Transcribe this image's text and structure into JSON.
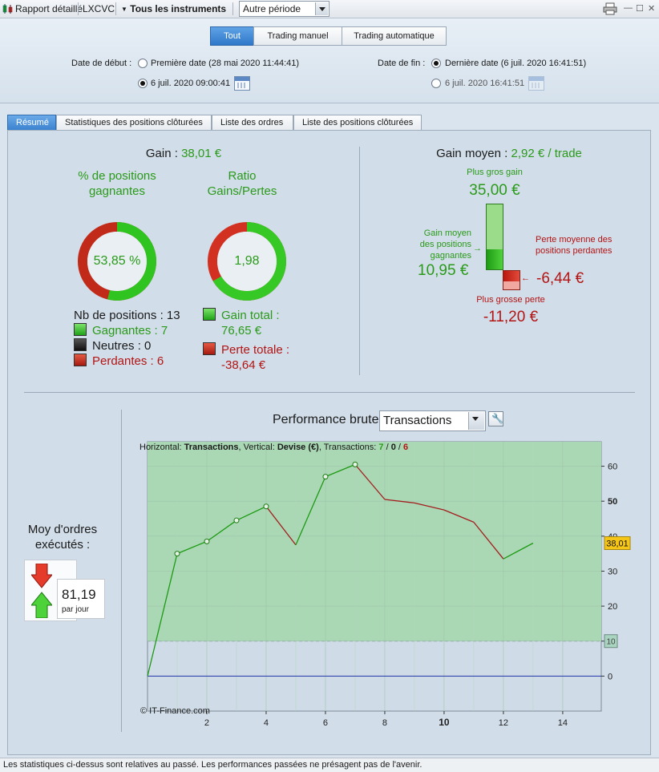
{
  "toolbar": {
    "report": "Rapport détaillé",
    "account": "LXCVC",
    "instruments": "Tous les instruments",
    "period": "Autre période"
  },
  "filters": {
    "segments": [
      "Tout",
      "Trading manuel",
      "Trading automatique"
    ],
    "start_label": "Date de début :",
    "start_first": "Première date (28 mai 2020 11:44:41)",
    "start_custom": "6 juil. 2020 09:00:41",
    "end_label": "Date de fin :",
    "end_last": "Dernière date (6 juil. 2020 16:41:51)",
    "end_custom": "6 juil. 2020 16:41:51"
  },
  "tabs": [
    "Résumé",
    "Statistiques des positions clôturées",
    "Liste des ordres",
    "Liste des positions clôturées"
  ],
  "summary": {
    "gain_label": "Gain :",
    "gain_value": "38,01 €",
    "pct_title": "% de positions gagnantes",
    "pct_value": "53,85 %",
    "pct_fraction": 0.5385,
    "ratio_title": "Ratio Gains/Pertes",
    "ratio_value": "1,98",
    "ratio_fraction": 0.665,
    "positions_label": "Nb de positions : 13",
    "winners": "Gagnantes : 7",
    "neutral": "Neutres : 0",
    "losers": "Perdantes : 6",
    "gain_total_label": "Gain total :",
    "gain_total_value": "76,65 €",
    "loss_total_label": "Perte totale :",
    "loss_total_value": "-38,64 €",
    "avg_gain_label": "Gain moyen :",
    "avg_gain_value": "2,92 € / trade",
    "biggest_gain_label": "Plus gros gain",
    "biggest_gain_value": "35,00 €",
    "avg_win_label": "Gain moyen des positions gagnantes",
    "avg_win_value": "10,95 €",
    "avg_loss_label": "Perte moyenne des positions perdantes",
    "avg_loss_value": "-6,44 €",
    "biggest_loss_label": "Plus grosse perte",
    "biggest_loss_value": "-11,20 €"
  },
  "orders": {
    "label": "Moy d'ordres exécutés :",
    "value": "81,19",
    "unit": "par jour"
  },
  "performance": {
    "title": "Performance brute",
    "mode": "Transactions",
    "info_h": "Horizontal:",
    "info_h_val": "Transactions",
    "info_v": "Vertical:",
    "info_v_val": "Devise (€)",
    "info_t": "Transactions:",
    "info_w": "7",
    "info_n": "0",
    "info_l": "6",
    "copyright": "© IT-Finance.com",
    "marker": "38,01",
    "marker_low": "10"
  },
  "chart_data": {
    "type": "line",
    "x": [
      0,
      1,
      2,
      3,
      4,
      5,
      6,
      7,
      8,
      9,
      10,
      11,
      12,
      13
    ],
    "y": [
      0,
      35,
      38.5,
      44.5,
      48.5,
      37.5,
      57,
      60.5,
      50.5,
      49.5,
      47.5,
      44,
      33.5,
      38.01
    ],
    "up": [
      true,
      true,
      true,
      true,
      false,
      true,
      true,
      false,
      false,
      false,
      false,
      false,
      true
    ],
    "markers": [
      1,
      2,
      3,
      4,
      6,
      7
    ],
    "x_ticks": [
      "2",
      "4",
      "6",
      "8",
      "10",
      "12",
      "14"
    ],
    "y_ticks": [
      "0",
      "10",
      "20",
      "30",
      "40",
      "50",
      "60"
    ],
    "xlim": [
      0,
      15.3
    ],
    "ylim": [
      -10,
      67
    ]
  },
  "status": "Les statistiques ci-dessus sont relatives au passé. Les performances passées ne présagent pas de l'avenir."
}
